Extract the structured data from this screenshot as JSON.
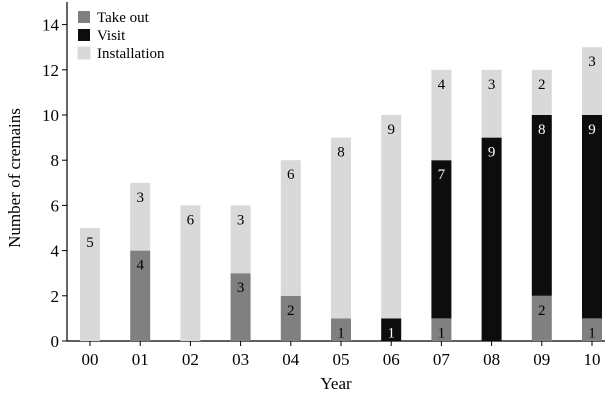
{
  "chart_data": {
    "type": "bar",
    "stacked": true,
    "xlabel": "Year",
    "ylabel": "Number of cremains",
    "ylim": [
      0,
      15
    ],
    "yticks": [
      0,
      2,
      4,
      6,
      8,
      10,
      12,
      14
    ],
    "categories": [
      "00",
      "01",
      "02",
      "03",
      "04",
      "05",
      "06",
      "07",
      "08",
      "09",
      "10"
    ],
    "legend_position": "top-left",
    "series": [
      {
        "name": "Take out",
        "color": "#808080",
        "label_color": "#000000",
        "values": [
          0,
          4,
          0,
          3,
          2,
          1,
          0,
          1,
          0,
          2,
          1
        ]
      },
      {
        "name": "Visit",
        "color": "#0d0d0d",
        "label_color": "#ffffff",
        "values": [
          0,
          0,
          0,
          0,
          0,
          0,
          1,
          7,
          9,
          8,
          9
        ]
      },
      {
        "name": "Installation",
        "color": "#d9d9d9",
        "label_color": "#000000",
        "values": [
          5,
          3,
          6,
          3,
          6,
          8,
          9,
          4,
          3,
          2,
          3
        ]
      }
    ]
  }
}
